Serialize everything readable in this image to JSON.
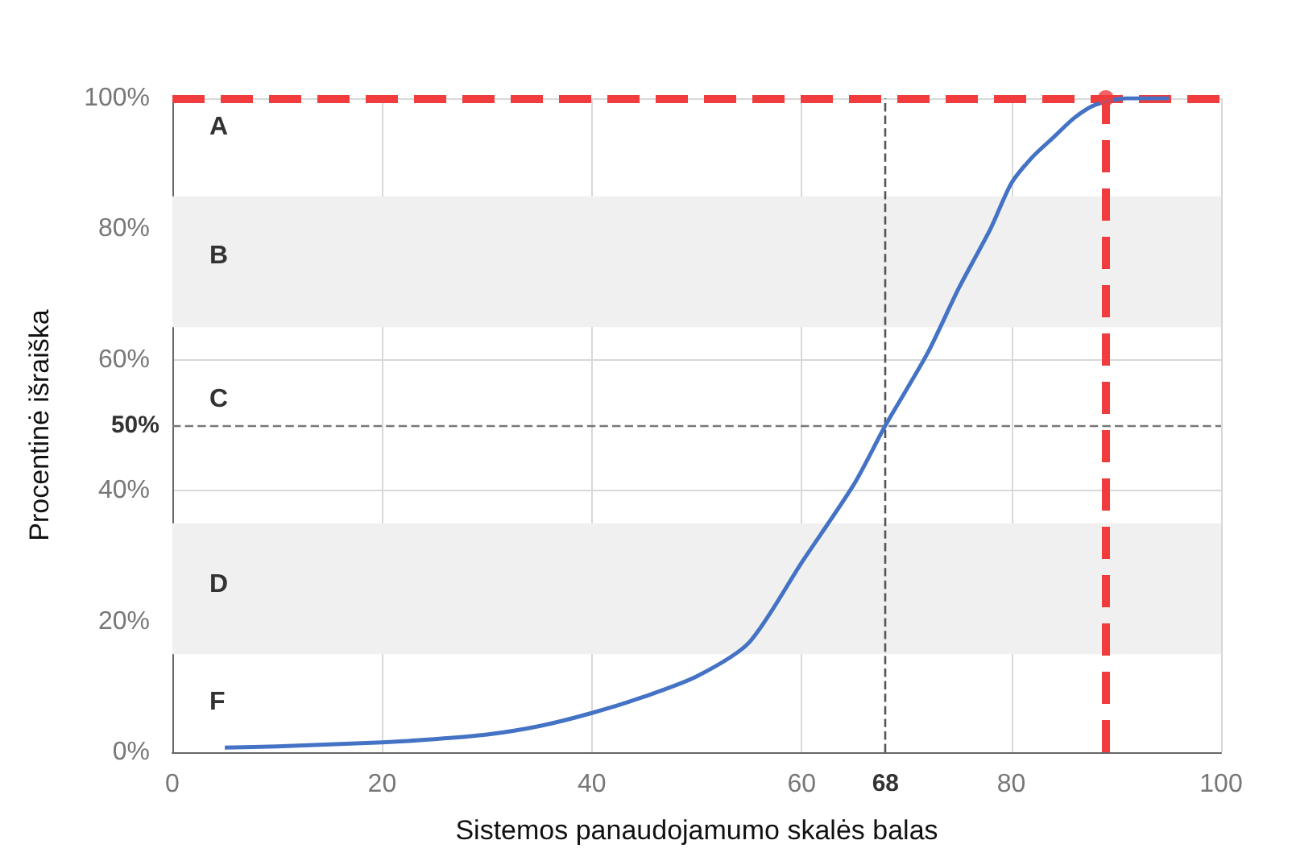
{
  "chart_data": {
    "type": "line",
    "xlabel": "Sistemos panaudojamumo skalės balas",
    "ylabel": "Procentinė išraiška",
    "xlim": [
      0,
      100
    ],
    "xticks": [
      0,
      20,
      40,
      60,
      80,
      100
    ],
    "ylim": [
      0,
      100
    ],
    "yticks": [
      {
        "value": 0,
        "label": "0%"
      },
      {
        "value": 20,
        "label": "20%"
      },
      {
        "value": 40,
        "label": "40%"
      },
      {
        "value": 60,
        "label": "60%"
      },
      {
        "value": 80,
        "label": "80%"
      },
      {
        "value": 100,
        "label": "100%"
      }
    ],
    "grid": true,
    "marker": "none",
    "line_style": "solid",
    "series": [
      {
        "color": "#4472c4",
        "x": [
          5,
          10,
          15,
          20,
          25,
          30,
          35,
          40,
          45,
          50,
          55,
          60,
          65,
          68,
          72,
          75,
          78,
          80,
          82,
          84,
          86,
          88,
          91,
          95
        ],
        "values": [
          0.7,
          0.9,
          1.2,
          1.5,
          2,
          2.7,
          4,
          6,
          8.5,
          11.6,
          16.8,
          29,
          41,
          50,
          61,
          71,
          80,
          87,
          91,
          94,
          97,
          99,
          100,
          100
        ]
      },
      {
        "type": "scatter",
        "color": "#f03c3c",
        "marker": "circle",
        "x": [
          89
        ],
        "values": [
          100
        ]
      }
    ],
    "bands": [
      {
        "axis": "y",
        "from": 65,
        "to": 85,
        "color": "#f0f0f0"
      },
      {
        "axis": "y",
        "from": 15,
        "to": 35,
        "color": "#f0f0f0"
      }
    ],
    "ref_lines": [
      {
        "axis": "y",
        "value": 100,
        "color": "#f03c3c",
        "line_style": "dashed"
      },
      {
        "axis": "x",
        "value": 89,
        "color": "#f03c3c",
        "line_style": "dashed"
      },
      {
        "axis": "x",
        "value": 68,
        "label": "68",
        "color": "#555555",
        "line_style": "dashed"
      },
      {
        "axis": "y",
        "value": 50,
        "label": "50%",
        "color": "#777777",
        "line_style": "dashed"
      }
    ],
    "annotations": [
      "A",
      "B",
      "C",
      "D",
      "F"
    ]
  }
}
